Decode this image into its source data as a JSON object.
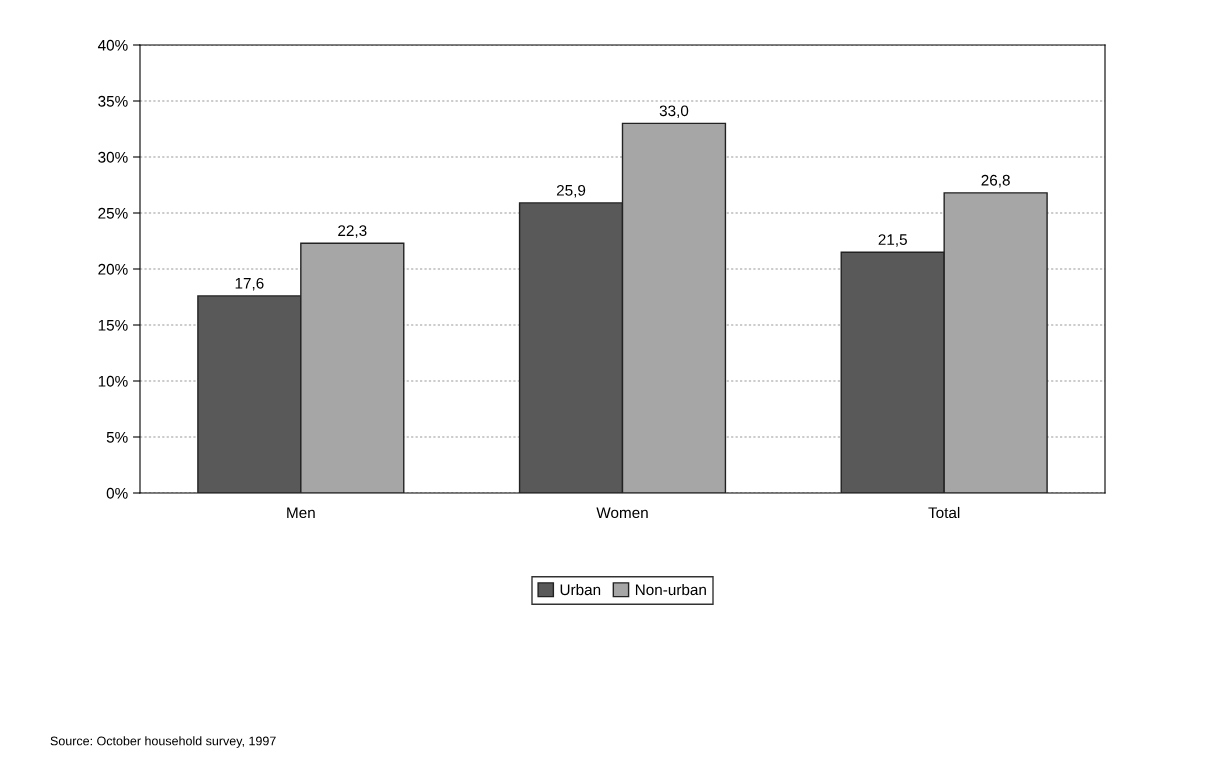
{
  "chart_data": {
    "type": "bar",
    "categories": [
      "Men",
      "Women",
      "Total"
    ],
    "series": [
      {
        "name": "Urban",
        "color": "#595959",
        "values": [
          17.6,
          25.9,
          21.5
        ],
        "value_labels": [
          "17,6",
          "25,9",
          "21,5"
        ]
      },
      {
        "name": "Non-urban",
        "color": "#a6a6a6",
        "values": [
          22.3,
          33.0,
          26.8
        ],
        "value_labels": [
          "22,3",
          "33,0",
          "26,8"
        ]
      }
    ],
    "ylim": [
      0,
      40
    ],
    "yticks": [
      {
        "value": 0,
        "label": "0%"
      },
      {
        "value": 5,
        "label": "5%"
      },
      {
        "value": 10,
        "label": "10%"
      },
      {
        "value": 15,
        "label": "15%"
      },
      {
        "value": 20,
        "label": "20%"
      },
      {
        "value": 25,
        "label": "25%"
      },
      {
        "value": 30,
        "label": "30%"
      },
      {
        "value": 35,
        "label": "35%"
      },
      {
        "value": 40,
        "label": "40%"
      }
    ],
    "grid": "y",
    "legend": "bottom",
    "annotations": [
      "Source: October household survey, 1997"
    ]
  }
}
